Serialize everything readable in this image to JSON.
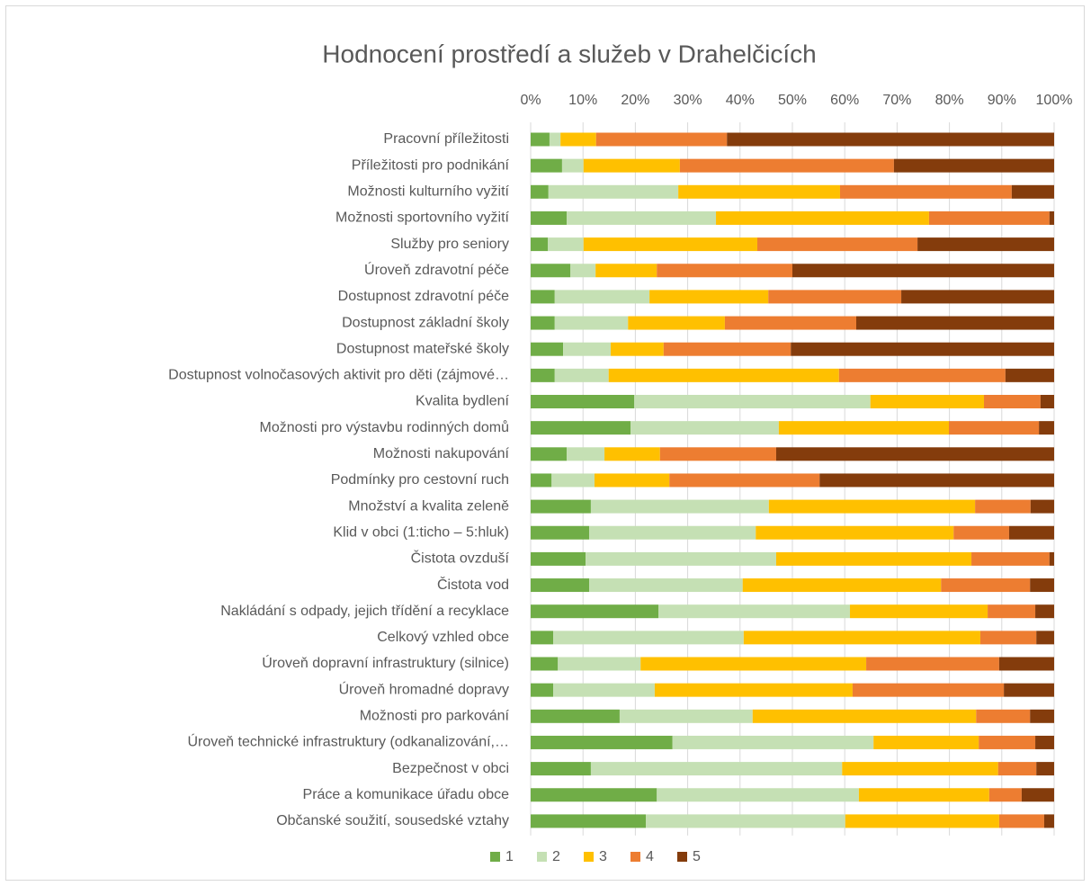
{
  "chart_data": {
    "type": "stacked_barh",
    "title": "Hodnocení prostředí a služeb v Drahelčicích",
    "categories": [
      "Pracovní příležitosti",
      "Příležitosti pro podnikání",
      "Možnosti kulturního vyžití",
      "Možnosti sportovního vyžití",
      "Služby pro seniory",
      "Úroveň zdravotní péče",
      "Dostupnost zdravotní péče",
      "Dostupnost základní školy",
      "Dostupnost mateřské školy",
      "Dostupnost volnočasových aktivit pro děti (zájmové…",
      "Kvalita bydlení",
      "Možnosti pro výstavbu rodinných domů",
      "Možnosti nakupování",
      "Podmínky pro cestovní ruch",
      "Množství a kvalita zeleně",
      "Klid v obci (1:ticho – 5:hluk)",
      "Čistota ovzduší",
      "Čistota vod",
      "Nakládání s odpady, jejich třídění a recyklace",
      "Celkový vzhled obce",
      "Úroveň dopravní infrastruktury (silnice)",
      "Úroveň hromadné dopravy",
      "Možnosti pro parkování",
      "Úroveň technické infrastruktury (odkanalizování,…",
      "Bezpečnost v obci",
      "Práce a komunikace úřadu obce",
      "Občanské soužití, sousedské vztahy"
    ],
    "series": [
      {
        "name": "1",
        "color": "#70ad47",
        "values": [
          3.6,
          6.0,
          3.4,
          6.9,
          3.3,
          7.6,
          4.6,
          4.6,
          6.2,
          4.6,
          19.8,
          19.1,
          6.9,
          4.0,
          11.5,
          11.2,
          10.5,
          11.2,
          24.4,
          4.3,
          5.2,
          4.3,
          17.0,
          27.1,
          11.5,
          24.1,
          22.0
        ]
      },
      {
        "name": "2",
        "color": "#c5e0b4",
        "values": [
          2.1,
          4.1,
          24.8,
          28.5,
          6.8,
          4.8,
          18.1,
          14.0,
          9.1,
          10.3,
          45.1,
          28.3,
          7.2,
          8.2,
          34.0,
          31.8,
          36.4,
          29.3,
          36.6,
          36.4,
          15.8,
          19.4,
          25.4,
          38.4,
          48.0,
          38.6,
          38.1
        ]
      },
      {
        "name": "3",
        "color": "#ffc000",
        "values": [
          6.8,
          18.4,
          30.9,
          40.7,
          33.2,
          11.7,
          22.7,
          18.5,
          10.1,
          44.0,
          21.7,
          32.5,
          10.6,
          14.3,
          39.4,
          37.8,
          37.3,
          37.9,
          26.3,
          45.2,
          43.1,
          37.8,
          42.7,
          20.1,
          29.8,
          24.9,
          29.4
        ]
      },
      {
        "name": "4",
        "color": "#ed7d31",
        "values": [
          25.0,
          40.9,
          32.8,
          23.0,
          30.6,
          25.9,
          25.4,
          25.1,
          24.3,
          31.8,
          10.8,
          17.2,
          22.2,
          28.7,
          10.6,
          10.6,
          14.9,
          17.0,
          9.1,
          10.7,
          25.4,
          28.9,
          10.3,
          10.8,
          7.3,
          6.2,
          8.6
        ]
      },
      {
        "name": "5",
        "color": "#843c0c",
        "values": [
          62.5,
          30.6,
          8.1,
          0.9,
          26.1,
          50.0,
          29.2,
          37.8,
          50.3,
          9.3,
          2.6,
          2.9,
          53.1,
          44.8,
          4.5,
          8.6,
          0.9,
          4.6,
          3.6,
          3.4,
          10.5,
          9.6,
          4.6,
          3.6,
          3.4,
          6.2,
          1.9
        ]
      }
    ],
    "xlim": [
      0,
      100
    ],
    "xticks": [
      {
        "value": 0,
        "label": "0%"
      },
      {
        "value": 10,
        "label": "10%"
      },
      {
        "value": 20,
        "label": "20%"
      },
      {
        "value": 30,
        "label": "30%"
      },
      {
        "value": 40,
        "label": "40%"
      },
      {
        "value": 50,
        "label": "50%"
      },
      {
        "value": 60,
        "label": "60%"
      },
      {
        "value": 70,
        "label": "70%"
      },
      {
        "value": 80,
        "label": "80%"
      },
      {
        "value": 90,
        "label": "90%"
      },
      {
        "value": 100,
        "label": "100%"
      }
    ],
    "grid": true,
    "legend": "bottom"
  }
}
